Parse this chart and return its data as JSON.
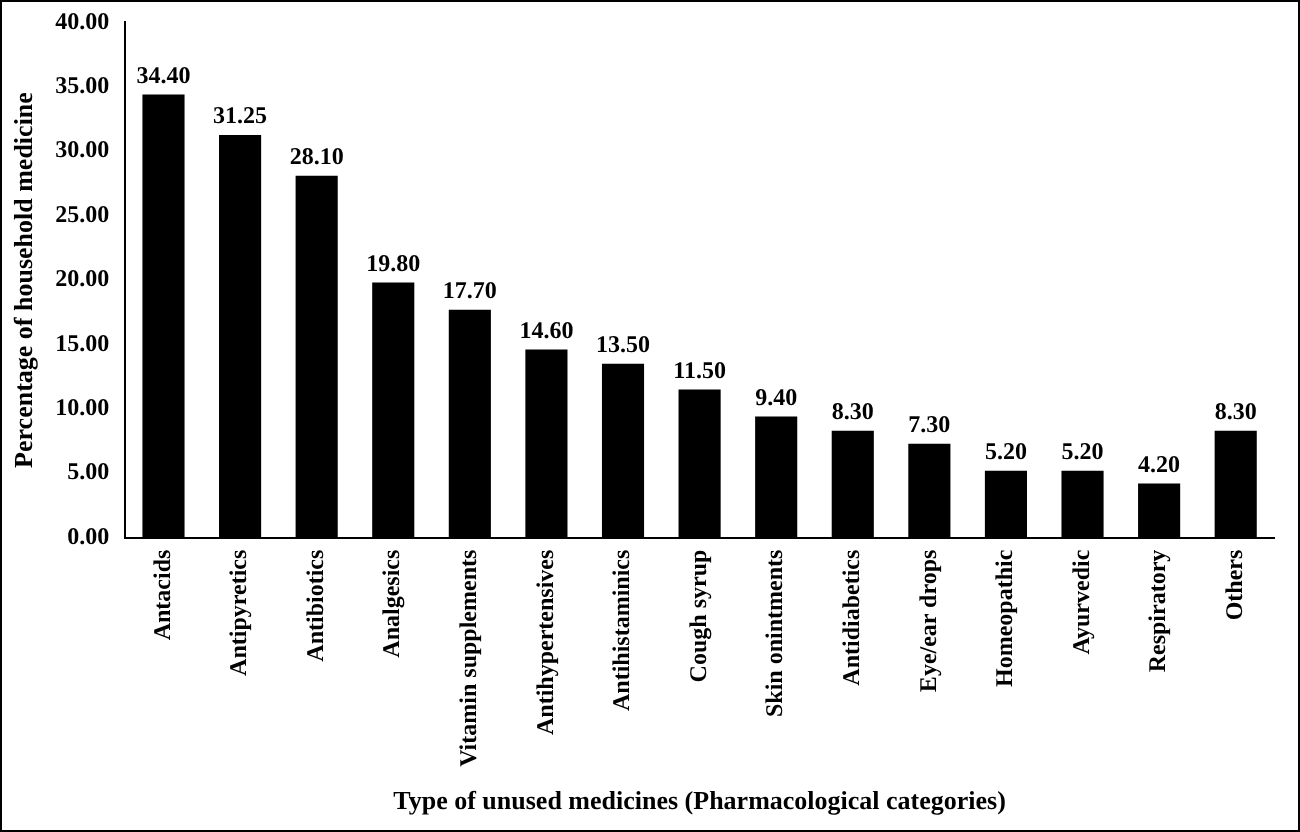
{
  "chart_data": {
    "type": "bar",
    "xlabel": "Type of unused medicines (Pharmacological categories)",
    "ylabel": "Percentage of household medicine",
    "categories": [
      "Antacids",
      "Antipyretics",
      "Antibiotics",
      "Analgesics",
      "Vitamin supplements",
      "Antihypertensives",
      "Antihistaminics",
      "Cough syrup",
      "Skin onintments",
      "Antidiabetics",
      "Eye/ear drops",
      "Homeopathic",
      "Ayurvedic",
      "Respiratory",
      "Others"
    ],
    "values": [
      34.4,
      31.25,
      28.1,
      19.8,
      17.7,
      14.6,
      13.5,
      11.5,
      9.4,
      8.3,
      7.3,
      5.2,
      5.2,
      4.2,
      8.3
    ],
    "value_labels": [
      "34.40",
      "31.25",
      "28.10",
      "19.80",
      "17.70",
      "14.60",
      "13.50",
      "11.50",
      "9.40",
      "8.30",
      "7.30",
      "5.20",
      "5.20",
      "4.20",
      "8.30"
    ],
    "color": "#000000",
    "ylim": [
      0,
      40
    ],
    "yticks": [
      {
        "value": 0,
        "label": "0.00"
      },
      {
        "value": 5,
        "label": "5.00"
      },
      {
        "value": 10,
        "label": "10.00"
      },
      {
        "value": 15,
        "label": "15.00"
      },
      {
        "value": 20,
        "label": "20.00"
      },
      {
        "value": 25,
        "label": "25.00"
      },
      {
        "value": 30,
        "label": "30.00"
      },
      {
        "value": 35,
        "label": "35.00"
      },
      {
        "value": 40,
        "label": "40.00"
      }
    ],
    "grid": false,
    "legend": false
  }
}
